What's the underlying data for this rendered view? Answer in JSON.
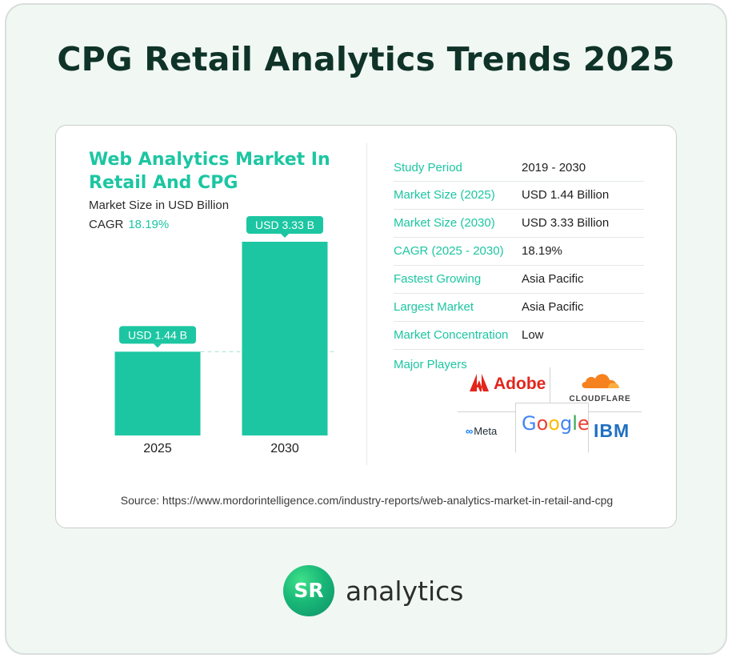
{
  "title": "CPG Retail Analytics Trends 2025",
  "chart_data": {
    "type": "bar",
    "title": "Web Analytics Market In Retail And CPG",
    "subtitle": "Market Size in USD Billion",
    "cagr_label": "CAGR",
    "cagr_value": "18.19%",
    "categories": [
      "2025",
      "2030"
    ],
    "values": [
      1.44,
      3.33
    ],
    "value_labels": [
      "USD 1.44 B",
      "USD 3.33 B"
    ],
    "color": "#1cc6a2",
    "ylim": [
      0,
      3.33
    ],
    "grid": false
  },
  "stats": [
    {
      "label": "Study Period",
      "value": "2019 - 2030"
    },
    {
      "label": "Market Size (2025)",
      "value": "USD 1.44 Billion"
    },
    {
      "label": "Market Size (2030)",
      "value": "USD 3.33 Billion"
    },
    {
      "label": "CAGR (2025  - 2030)",
      "value": "18.19%"
    },
    {
      "label": "Fastest Growing",
      "value": "Asia Pacific"
    },
    {
      "label": "Largest Market",
      "value": "Asia Pacific"
    },
    {
      "label": "Market Concentration",
      "value": "Low"
    }
  ],
  "players": {
    "label": "Major Players",
    "adobe": "Adobe",
    "cloudflare": "CLOUDFLARE",
    "meta": "Meta",
    "google": [
      "G",
      "o",
      "o",
      "g",
      "l",
      "e"
    ],
    "ibm": "IBM"
  },
  "source": "Source: https://www.mordorintelligence.com/industry-reports/web-analytics-market-in-retail-and-cpg",
  "brand": {
    "badge": "SR",
    "name": "analytics"
  },
  "colors": {
    "accent": "#1cc6a2",
    "title": "#0f3328",
    "background": "#f1f8f3"
  }
}
